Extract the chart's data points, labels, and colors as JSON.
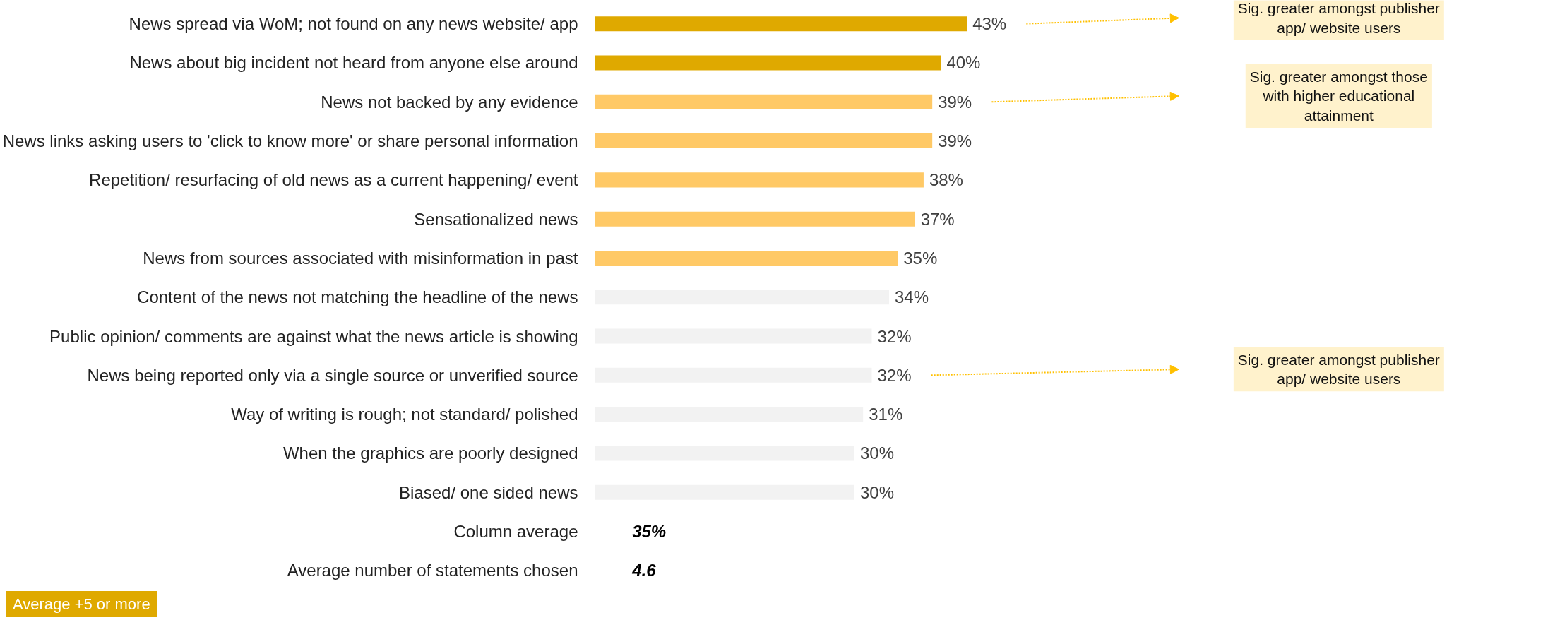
{
  "chart_data": {
    "type": "bar",
    "orientation": "horizontal",
    "grid": false,
    "legend": false,
    "categories": [
      "News spread via WoM; not found on any news website/ app",
      "News about big incident not heard from anyone else around",
      "News not backed by any evidence",
      "News links asking users to 'click to know more' or share personal information",
      "Repetition/ resurfacing of old news as a current happening/ event",
      "Sensationalized news",
      "News from sources associated with misinformation in past",
      "Content of the news not matching the headline of the news",
      "Public opinion/ comments are against what the news article is showing",
      "News being reported only via a single source or unverified source",
      "Way of writing is rough; not standard/ polished",
      "When the graphics are poorly designed",
      "Biased/ one sided news"
    ],
    "values": [
      43,
      40,
      39,
      39,
      38,
      37,
      35,
      34,
      32,
      32,
      31,
      30,
      30
    ],
    "value_labels": [
      "43%",
      "40%",
      "39%",
      "39%",
      "38%",
      "37%",
      "35%",
      "34%",
      "32%",
      "32%",
      "31%",
      "30%",
      "30%"
    ],
    "colors": [
      "#dfa900",
      "#dfa900",
      "#ffc966",
      "#ffc966",
      "#ffc966",
      "#ffc966",
      "#ffc966",
      "#f2f2f2",
      "#f2f2f2",
      "#f2f2f2",
      "#f2f2f2",
      "#f2f2f2",
      "#f2f2f2"
    ],
    "annotations": [
      "Sig. greater amongst publisher app/ website users",
      "Sig. greater amongst those with higher educational attainment",
      "Sig. greater amongst publisher app/ website users",
      "Column average",
      "35%",
      "Average number of statements chosen",
      "4.6",
      "Average +5 or more"
    ]
  }
}
